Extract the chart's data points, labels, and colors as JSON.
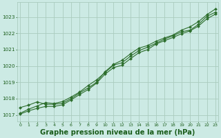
{
  "bg_color": "#cceae4",
  "grid_color": "#aaccbe",
  "line_color": "#2d6e2d",
  "marker_color": "#2d6e2d",
  "title": "Graphe pression niveau de la mer (hPa)",
  "title_color": "#1a5c1a",
  "title_fontsize": 7.2,
  "tick_color": "#1a5c1a",
  "x_ticks": [
    0,
    1,
    2,
    3,
    4,
    5,
    6,
    7,
    8,
    9,
    10,
    11,
    12,
    13,
    14,
    15,
    16,
    17,
    18,
    19,
    20,
    21,
    22,
    23
  ],
  "y_ticks": [
    1017,
    1018,
    1019,
    1020,
    1021,
    1022,
    1023
  ],
  "xlim": [
    -0.3,
    23.3
  ],
  "ylim": [
    1016.6,
    1023.9
  ],
  "line1_x": [
    0,
    1,
    2,
    3,
    4,
    5,
    6,
    7,
    8,
    9,
    10,
    11,
    12,
    13,
    14,
    15,
    16,
    17,
    18,
    19,
    20,
    21,
    22,
    23
  ],
  "line1_y": [
    1017.1,
    1017.35,
    1017.55,
    1017.75,
    1017.7,
    1017.82,
    1018.1,
    1018.4,
    1018.8,
    1019.15,
    1019.6,
    1020.05,
    1020.2,
    1020.6,
    1020.95,
    1021.15,
    1021.4,
    1021.65,
    1021.85,
    1022.1,
    1022.2,
    1022.55,
    1023.05,
    1023.3
  ],
  "line2_x": [
    0,
    1,
    2,
    3,
    4,
    5,
    6,
    7,
    8,
    9,
    10,
    11,
    12,
    13,
    14,
    15,
    16,
    17,
    18,
    19,
    20,
    21,
    22,
    23
  ],
  "line2_y": [
    1017.45,
    1017.6,
    1017.8,
    1017.65,
    1017.65,
    1017.72,
    1018.0,
    1018.35,
    1018.65,
    1019.0,
    1019.65,
    1020.1,
    1020.35,
    1020.75,
    1021.1,
    1021.25,
    1021.52,
    1021.72,
    1021.9,
    1022.2,
    1022.4,
    1022.72,
    1023.15,
    1023.5
  ],
  "line3_x": [
    0,
    1,
    2,
    3,
    4,
    5,
    6,
    7,
    8,
    9,
    10,
    11,
    12,
    13,
    14,
    15,
    16,
    17,
    18,
    19,
    20,
    21,
    22,
    23
  ],
  "line3_y": [
    1017.05,
    1017.25,
    1017.4,
    1017.52,
    1017.52,
    1017.62,
    1017.92,
    1018.25,
    1018.55,
    1018.95,
    1019.5,
    1019.9,
    1020.05,
    1020.45,
    1020.82,
    1021.0,
    1021.35,
    1021.55,
    1021.75,
    1021.98,
    1022.15,
    1022.45,
    1022.9,
    1023.18
  ]
}
